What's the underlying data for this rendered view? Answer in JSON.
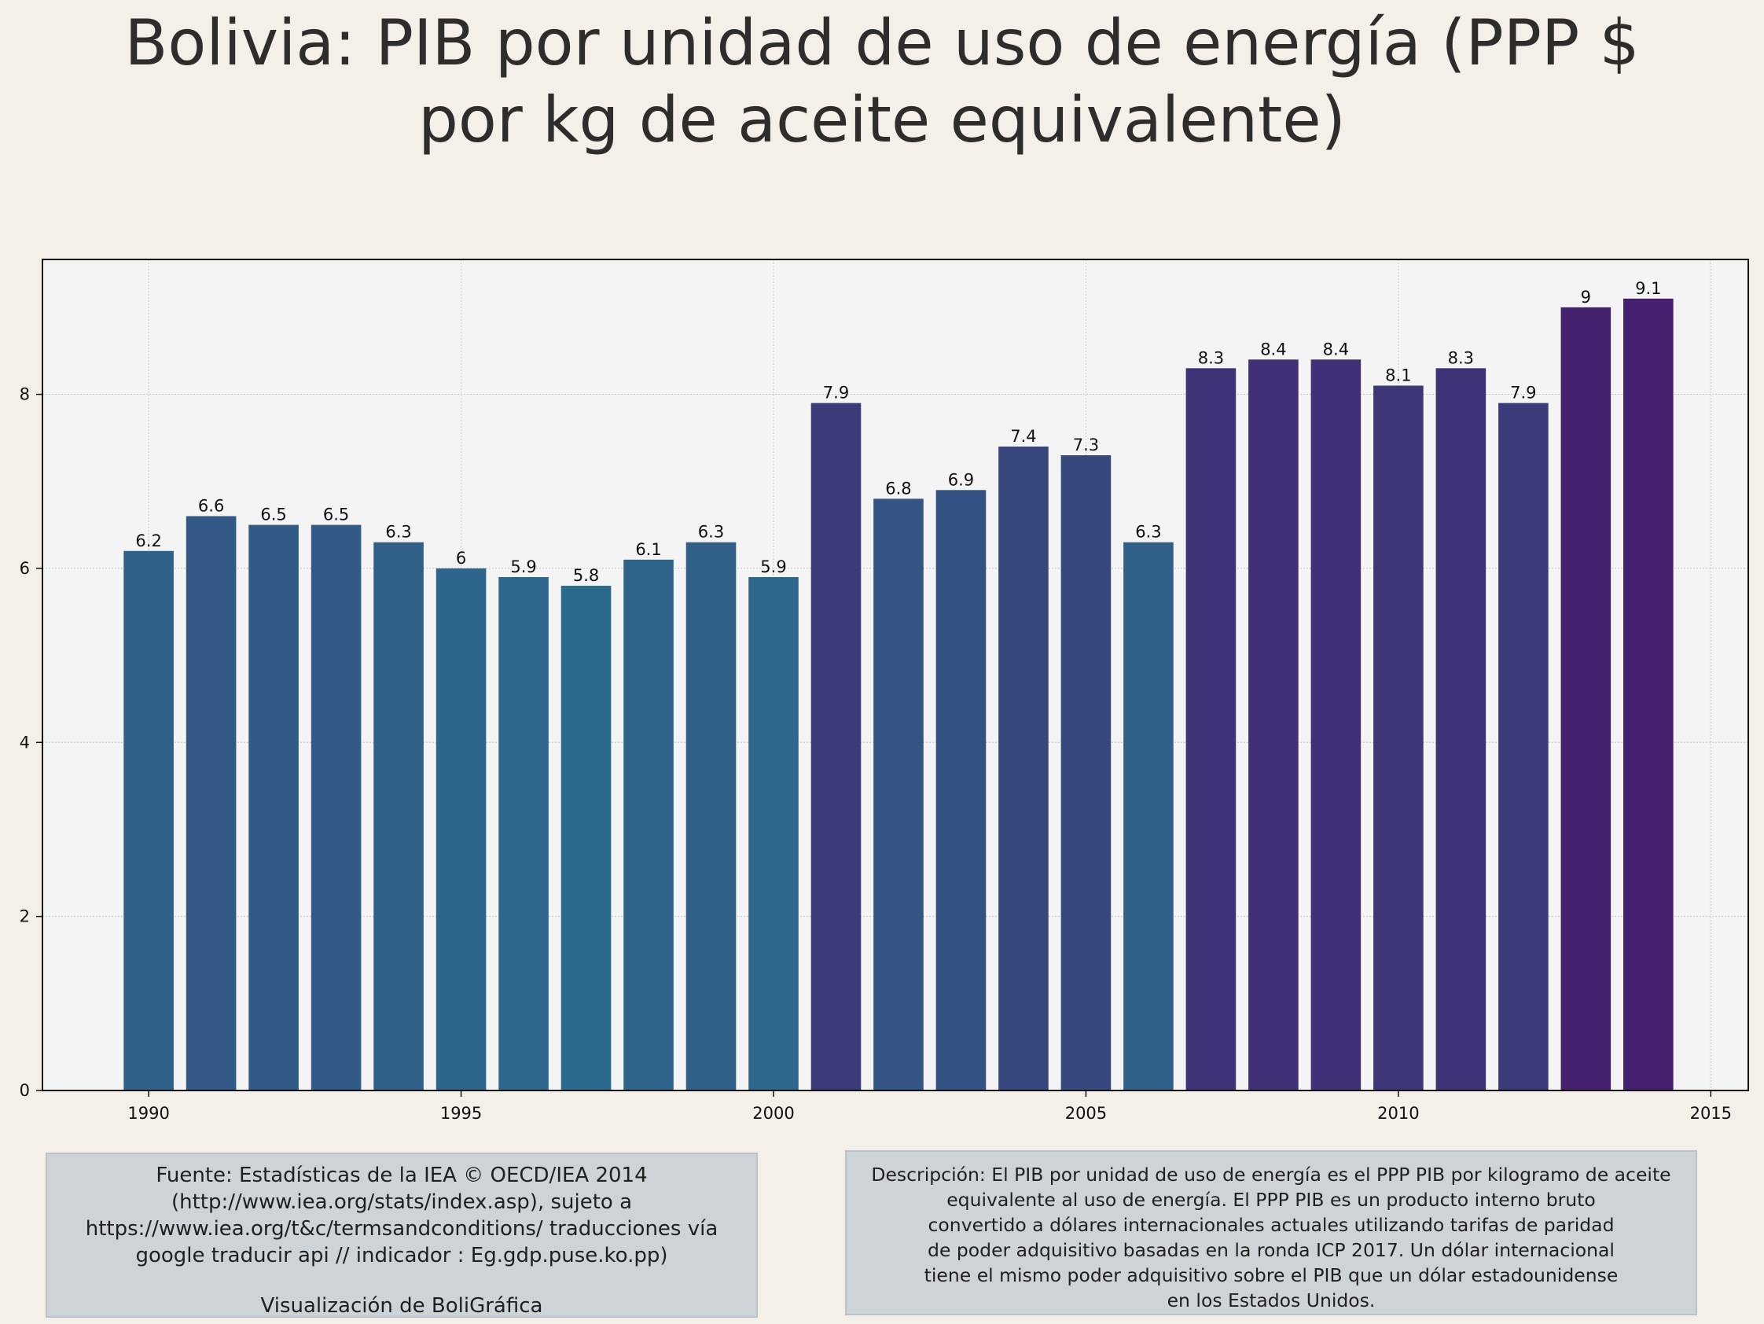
{
  "chart_data": {
    "type": "bar",
    "title_lines": [
      "Bolivia:  PIB por unidad de uso de energía (PPP $",
      "por kg de aceite equivalente)"
    ],
    "x": [
      1990,
      1991,
      1992,
      1993,
      1994,
      1995,
      1996,
      1997,
      1998,
      1999,
      2000,
      2001,
      2002,
      2003,
      2004,
      2005,
      2006,
      2007,
      2008,
      2009,
      2010,
      2011,
      2012,
      2013,
      2014
    ],
    "values": [
      6.2,
      6.6,
      6.5,
      6.5,
      6.3,
      6.0,
      5.9,
      5.8,
      6.1,
      6.3,
      5.9,
      7.9,
      6.8,
      6.9,
      7.4,
      7.3,
      6.3,
      8.3,
      8.4,
      8.4,
      8.1,
      8.3,
      7.9,
      9.0,
      9.1
    ],
    "data_labels": [
      "6.2",
      "6.6",
      "6.5",
      "6.5",
      "6.3",
      "6",
      "5.9",
      "5.8",
      "6.1",
      "6.3",
      "5.9",
      "7.9",
      "6.8",
      "6.9",
      "7.4",
      "7.3",
      "6.3",
      "8.3",
      "8.4",
      "8.4",
      "8.1",
      "8.3",
      "7.9",
      "9",
      "9.1"
    ],
    "xlabel": "",
    "ylabel": "",
    "xlim": [
      1988.3,
      2015.6
    ],
    "ylim": [
      0,
      9.55
    ],
    "x_ticks": [
      1990,
      1995,
      2000,
      2005,
      2010,
      2015
    ],
    "x_tick_labels": [
      "1990",
      "1995",
      "2000",
      "2005",
      "2010",
      "2015"
    ],
    "y_ticks": [
      0,
      2,
      4,
      6,
      8
    ],
    "y_tick_labels": [
      "0",
      "2",
      "4",
      "6",
      "8"
    ],
    "grid": true,
    "legend": "none",
    "color_scale": "viridis (purple-blue), darker for higher values",
    "colors": {
      "plot_background": "#f4f4f4",
      "page_background": "#f4efe8",
      "grid": "#c8c8c8",
      "bar_low": "#2c6a8d",
      "bar_high": "#45206e"
    }
  },
  "footer": {
    "source_lines": [
      "Fuente: Estadísticas de la IEA © OECD/IEA 2014",
      "(http://www.iea.org/stats/index.asp), sujeto a",
      "https://www.iea.org/t&c/termsandconditions/ traducciones vía",
      "google traducir api // indicador : Eg.gdp.puse.ko.pp)"
    ],
    "credit": "Visualización de BoliGráfica",
    "description_lines": [
      "Descripción: El PIB por unidad de uso de energía es el PPP PIB por kilogramo de aceite",
      "equivalente al uso de energía. El PPP PIB es un producto interno bruto",
      "convertido a dólares internacionales actuales utilizando tarifas de paridad",
      "de poder adquisitivo basadas en la ronda ICP 2017. Un dólar internacional",
      "tiene el mismo poder adquisitivo sobre el PIB que un dólar estadounidense",
      "en los Estados Unidos."
    ]
  }
}
